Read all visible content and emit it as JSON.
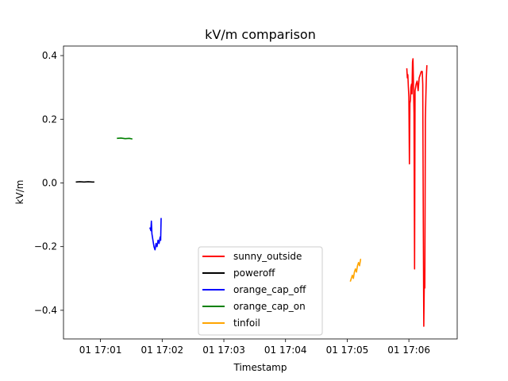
{
  "chart_data": {
    "type": "line",
    "title": "kV/m comparison",
    "xlabel": "Timestamp",
    "ylabel": "kV/m",
    "x_unit": "time (HH:MM:SS)",
    "xlim": [
      "17:00:24",
      "17:06:47"
    ],
    "ylim": [
      -0.49,
      0.43
    ],
    "x_ticks": [
      {
        "t": "17:01:00",
        "label": "01 17:01"
      },
      {
        "t": "17:02:00",
        "label": "01 17:02"
      },
      {
        "t": "17:03:00",
        "label": "01 17:03"
      },
      {
        "t": "17:04:00",
        "label": "01 17:04"
      },
      {
        "t": "17:05:00",
        "label": "01 17:05"
      },
      {
        "t": "17:06:00",
        "label": "01 17:06"
      }
    ],
    "y_ticks": [
      0.4,
      0.2,
      0.0,
      -0.2,
      -0.4
    ],
    "y_tick_labels": [
      "0.4",
      "0.2",
      "0.0",
      "−0.2",
      "−0.4"
    ],
    "grid": false,
    "legend_position": "lower-center",
    "series": [
      {
        "name": "sunny_outside",
        "color": "#ff0000",
        "points": [
          [
            "17:05:58",
            0.36
          ],
          [
            "17:05:58.5",
            0.33
          ],
          [
            "17:05:59",
            0.34
          ],
          [
            "17:05:59.5",
            0.3
          ],
          [
            "17:06:00",
            0.27
          ],
          [
            "17:06:00.5",
            0.06
          ],
          [
            "17:06:01",
            0.25
          ],
          [
            "17:06:01.5",
            0.26
          ],
          [
            "17:06:02",
            0.3
          ],
          [
            "17:06:02.5",
            0.31
          ],
          [
            "17:06:03",
            0.28
          ],
          [
            "17:06:03.5",
            0.38
          ],
          [
            "17:06:04",
            0.39
          ],
          [
            "17:06:04.5",
            0.3
          ],
          [
            "17:06:05",
            0.22
          ],
          [
            "17:06:05.5",
            -0.27
          ],
          [
            "17:06:06",
            0.29
          ],
          [
            "17:06:07",
            0.31
          ],
          [
            "17:06:08",
            0.32
          ],
          [
            "17:06:09",
            0.29
          ],
          [
            "17:06:10",
            0.33
          ],
          [
            "17:06:11",
            0.34
          ],
          [
            "17:06:12",
            0.35
          ],
          [
            "17:06:13",
            0.35
          ],
          [
            "17:06:13.5",
            0.31
          ],
          [
            "17:06:14",
            -0.12
          ],
          [
            "17:06:14.5",
            -0.45
          ],
          [
            "17:06:15",
            -0.3
          ],
          [
            "17:06:15.5",
            -0.33
          ],
          [
            "17:06:16",
            0.2
          ],
          [
            "17:06:16.5",
            0.27
          ],
          [
            "17:06:17",
            0.33
          ],
          [
            "17:06:17.5",
            0.37
          ]
        ]
      },
      {
        "name": "poweroff",
        "color": "#000000",
        "points": [
          [
            "17:00:36",
            0.003
          ],
          [
            "17:00:40",
            0.004
          ],
          [
            "17:00:44",
            0.003
          ],
          [
            "17:00:48",
            0.004
          ],
          [
            "17:00:52",
            0.003
          ],
          [
            "17:00:54",
            0.003
          ]
        ]
      },
      {
        "name": "orange_cap_off",
        "color": "#0000ff",
        "points": [
          [
            "17:01:48",
            -0.14
          ],
          [
            "17:01:49",
            -0.15
          ],
          [
            "17:01:49.5",
            -0.12
          ],
          [
            "17:01:50",
            -0.16
          ],
          [
            "17:01:51",
            -0.18
          ],
          [
            "17:01:52",
            -0.2
          ],
          [
            "17:01:53",
            -0.21
          ],
          [
            "17:01:54",
            -0.19
          ],
          [
            "17:01:55",
            -0.2
          ],
          [
            "17:01:56",
            -0.18
          ],
          [
            "17:01:57",
            -0.19
          ],
          [
            "17:01:58",
            -0.17
          ],
          [
            "17:01:58.5",
            -0.18
          ],
          [
            "17:01:59",
            -0.11
          ]
        ]
      },
      {
        "name": "orange_cap_on",
        "color": "#008000",
        "points": [
          [
            "17:01:16",
            0.14
          ],
          [
            "17:01:20",
            0.141
          ],
          [
            "17:01:24",
            0.139
          ],
          [
            "17:01:28",
            0.14
          ],
          [
            "17:01:31",
            0.138
          ]
        ]
      },
      {
        "name": "tinfoil",
        "color": "#ffa500",
        "points": [
          [
            "17:05:03",
            -0.31
          ],
          [
            "17:05:04",
            -0.3
          ],
          [
            "17:05:05",
            -0.29
          ],
          [
            "17:05:06",
            -0.3
          ],
          [
            "17:05:07",
            -0.28
          ],
          [
            "17:05:08",
            -0.27
          ],
          [
            "17:05:09",
            -0.28
          ],
          [
            "17:05:10",
            -0.26
          ],
          [
            "17:05:11",
            -0.25
          ],
          [
            "17:05:12",
            -0.26
          ],
          [
            "17:05:13",
            -0.24
          ],
          [
            "17:05:13.5",
            -0.24
          ]
        ]
      }
    ]
  }
}
